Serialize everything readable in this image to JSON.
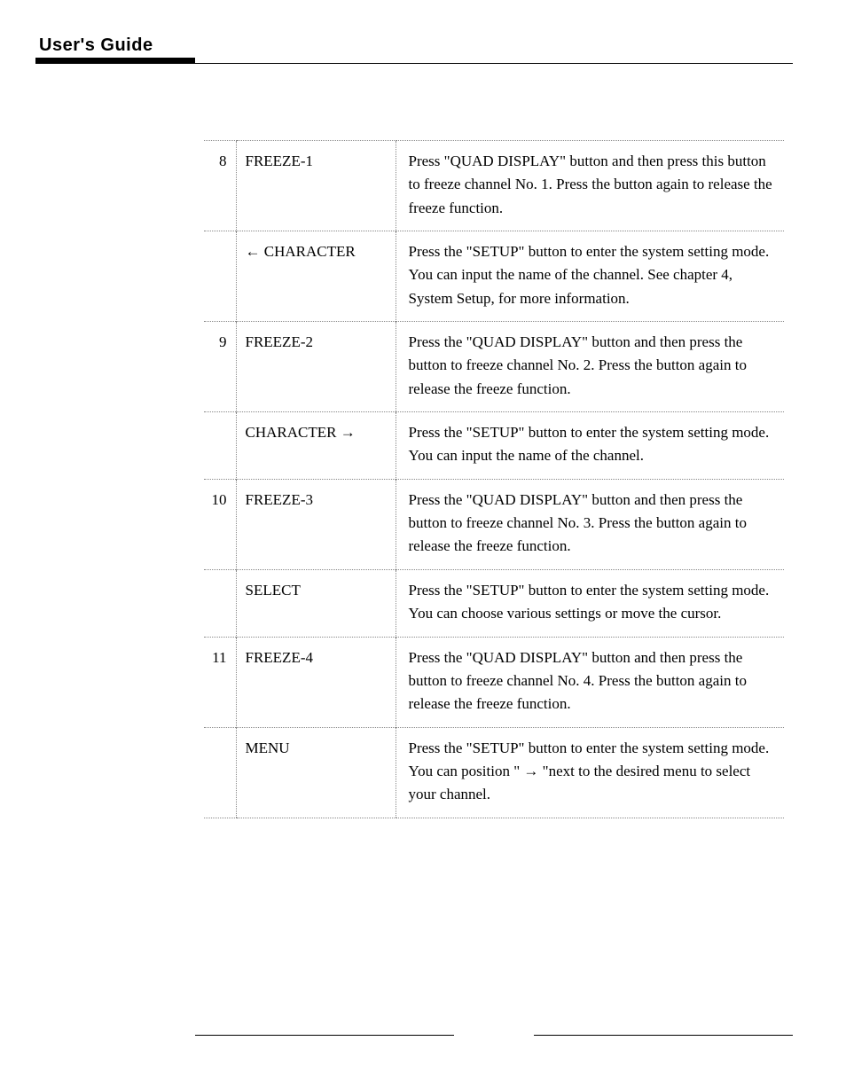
{
  "header": {
    "title": "User's Guide"
  },
  "table": {
    "rows": [
      {
        "num": "8",
        "label": "FREEZE-1",
        "desc": "Press \"QUAD DISPLAY\" button and then press this button to freeze channel No. 1. Press the button again to release the freeze function."
      },
      {
        "num": "",
        "label": "← CHARACTER",
        "desc": "Press the \"SETUP\" button to enter the system setting mode. You can input the name of the channel. See chapter 4, System  Setup, for more information."
      },
      {
        "num": "9",
        "label": "FREEZE-2",
        "desc": "Press  the \"QUAD DISPLAY\" button and then press the button to freeze channel No. 2. Press the button again to release the freeze function."
      },
      {
        "num": "",
        "label": "CHARACTER →",
        "desc": "Press the \"SETUP\" button to enter the system setting mode. You can input the name of the channel."
      },
      {
        "num": "10",
        "label": "FREEZE-3",
        "desc": "Press the \"QUAD DISPLAY\" button and then press the button to freeze channel No. 3. Press the button again to release the freeze function."
      },
      {
        "num": "",
        "label": "SELECT",
        "desc": "Press the \"SETUP\" button to enter the system setting mode. You can choose various settings or move the cursor."
      },
      {
        "num": "11",
        "label": "FREEZE-4",
        "desc": "Press  the \"QUAD DISPLAY\" button and then press the button to freeze channel No. 4. Press the button again to release the freeze function."
      },
      {
        "num": "",
        "label": "MENU",
        "desc": "Press the \"SETUP\" button to enter the system setting mode.\nYou can position \" → \"next to the desired menu to select your channel."
      }
    ]
  }
}
